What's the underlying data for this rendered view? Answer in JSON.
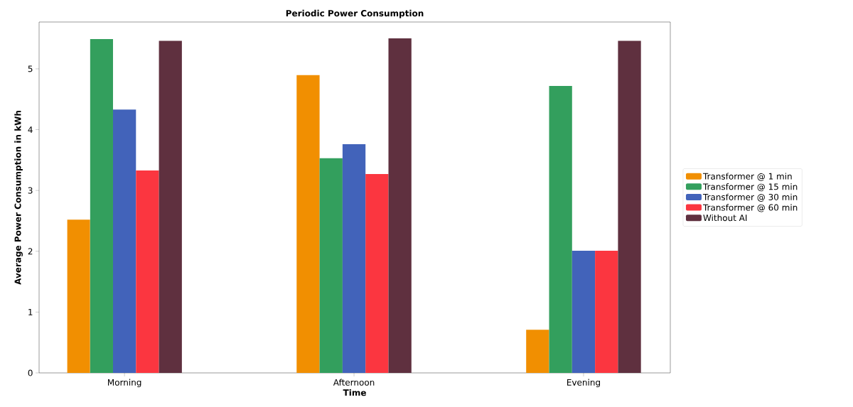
{
  "chart_data": {
    "type": "bar",
    "title": "Periodic Power Consumption",
    "xlabel": "Time",
    "ylabel": "Average Power Consumption in kWh",
    "categories": [
      "Morning",
      "Afternoon",
      "Evening"
    ],
    "series": [
      {
        "name": "Transformer @ 1 min",
        "color": "#f18f01",
        "values": [
          2.52,
          4.9,
          0.71
        ]
      },
      {
        "name": "Transformer @ 15 min",
        "color": "#339f5d",
        "values": [
          5.49,
          3.53,
          4.72
        ]
      },
      {
        "name": "Transformer @ 30 min",
        "color": "#4263ba",
        "values": [
          4.33,
          3.76,
          2.01
        ]
      },
      {
        "name": "Transformer @ 60 min",
        "color": "#fb3640",
        "values": [
          3.33,
          3.27,
          2.01
        ]
      },
      {
        "name": "Without AI",
        "color": "#5f303f",
        "values": [
          5.46,
          5.5,
          5.46
        ]
      }
    ],
    "ylim": [
      0,
      5.77
    ],
    "yticks": [
      0,
      1,
      2,
      3,
      4,
      5
    ],
    "grid": false,
    "legend": "right"
  }
}
